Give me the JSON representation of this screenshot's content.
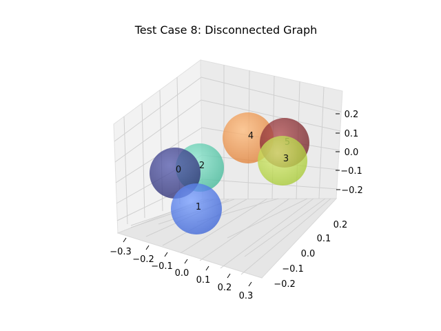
{
  "chart_data": {
    "type": "scatter",
    "projection": "3d",
    "title": "Test Case 8: Disconnected Graph",
    "xlabel": "",
    "ylabel": "",
    "zlabel": "",
    "grid": true,
    "xticks": [
      "−0.3",
      "−0.2",
      "−0.1",
      "0.0",
      "0.1",
      "0.2",
      "0.3"
    ],
    "yticks": [
      "−0.2",
      "−0.1",
      "0.0",
      "0.1",
      "0.2"
    ],
    "zticks": [
      "−0.2",
      "−0.1",
      "0.0",
      "0.1",
      "0.2"
    ],
    "nodes": [
      {
        "label": "0",
        "color": "#3a3d8c"
      },
      {
        "label": "1",
        "color": "#4f7ef2"
      },
      {
        "label": "2",
        "color": "#62d4b6"
      },
      {
        "label": "3",
        "color": "#c6e24a"
      },
      {
        "label": "4",
        "color": "#f59a4e"
      },
      {
        "label": "5",
        "color": "#8e2f33"
      }
    ]
  }
}
